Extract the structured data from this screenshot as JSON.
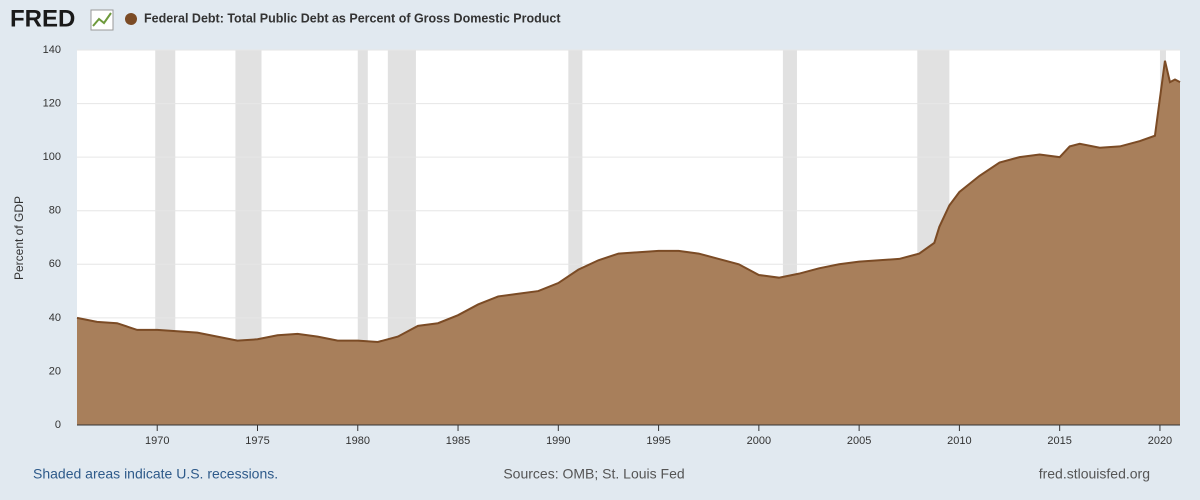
{
  "chart_data": {
    "type": "area",
    "logo": "FRED",
    "title": "Federal Debt: Total Public Debt as Percent of Gross Domestic Product",
    "y_label": "Percent of GDP",
    "note": "Shaded areas indicate U.S. recessions.",
    "source": "Sources: OMB; St. Louis Fed",
    "site": "fred.stlouisfed.org",
    "color": "#a87f5b",
    "line_color": "#7b4b25",
    "recession_color": "#e1e1e1",
    "grid": true,
    "xlim": [
      1966,
      2021
    ],
    "xticks": [
      1970,
      1975,
      1980,
      1985,
      1990,
      1995,
      2000,
      2005,
      2010,
      2015,
      2020
    ],
    "ylim": [
      0,
      140
    ],
    "yticks": [
      0,
      20,
      40,
      60,
      80,
      100,
      120,
      140
    ],
    "recessions": [
      [
        1969.9,
        1970.9
      ],
      [
        1973.9,
        1975.2
      ],
      [
        1980.0,
        1980.5
      ],
      [
        1981.5,
        1982.9
      ],
      [
        1990.5,
        1991.2
      ],
      [
        2001.2,
        2001.9
      ],
      [
        2007.9,
        2009.5
      ],
      [
        2020.0,
        2020.3
      ]
    ],
    "x": [
      1966,
      1967,
      1968,
      1969,
      1970,
      1971,
      1972,
      1973,
      1974,
      1975,
      1976,
      1977,
      1978,
      1979,
      1980,
      1981,
      1982,
      1983,
      1984,
      1985,
      1986,
      1987,
      1988,
      1989,
      1990,
      1991,
      1992,
      1993,
      1994,
      1995,
      1996,
      1997,
      1998,
      1999,
      2000,
      2001,
      2002,
      2003,
      2004,
      2005,
      2006,
      2007,
      2008,
      2008.75,
      2009,
      2009.5,
      2010,
      2011,
      2012,
      2013,
      2014,
      2015,
      2015.5,
      2016,
      2017,
      2018,
      2019,
      2019.75,
      2020.25,
      2020.5,
      2020.75,
      2021
    ],
    "values": [
      40,
      38.5,
      38,
      35.5,
      35.5,
      35,
      34.5,
      33,
      31.5,
      32,
      33.5,
      34,
      33,
      31.5,
      31.5,
      31,
      33,
      37,
      38,
      41,
      45,
      48,
      49,
      50,
      53,
      58,
      61.5,
      64,
      64.5,
      65,
      65,
      64,
      62,
      60,
      56,
      55,
      56.5,
      58.5,
      60,
      61,
      61.5,
      62,
      64,
      68,
      74,
      82,
      87,
      93,
      98,
      100,
      101,
      100,
      104,
      105,
      103.5,
      104,
      106,
      108,
      136,
      128,
      129,
      128
    ]
  }
}
